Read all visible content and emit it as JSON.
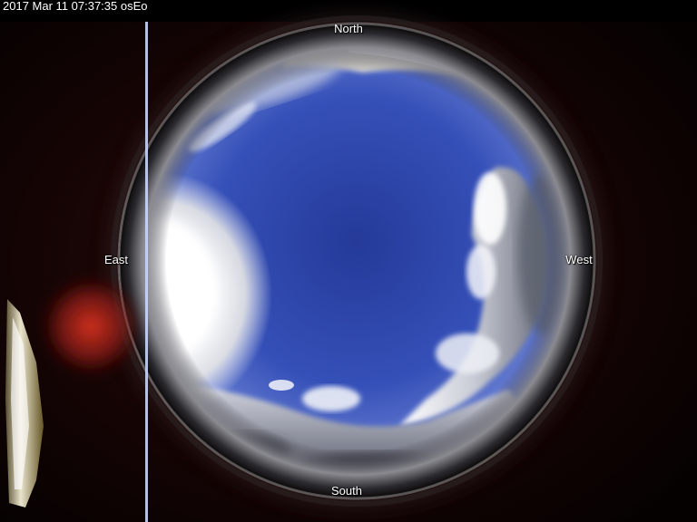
{
  "camera": {
    "timestamp": "2017 Mar 11  07:37:35 osEo"
  },
  "compass": {
    "north": "North",
    "south": "South",
    "east": "East",
    "west": "West"
  },
  "colors": {
    "background": "#000000",
    "sky_center": "#2a3d9e",
    "sky_edge": "#6f86d6",
    "cloud": "#e9eef7",
    "sun_glare": "#ffffff",
    "lens_flare": "#c8281e",
    "lens_rim": "#1c1c22",
    "label_text": "#ffffff"
  }
}
